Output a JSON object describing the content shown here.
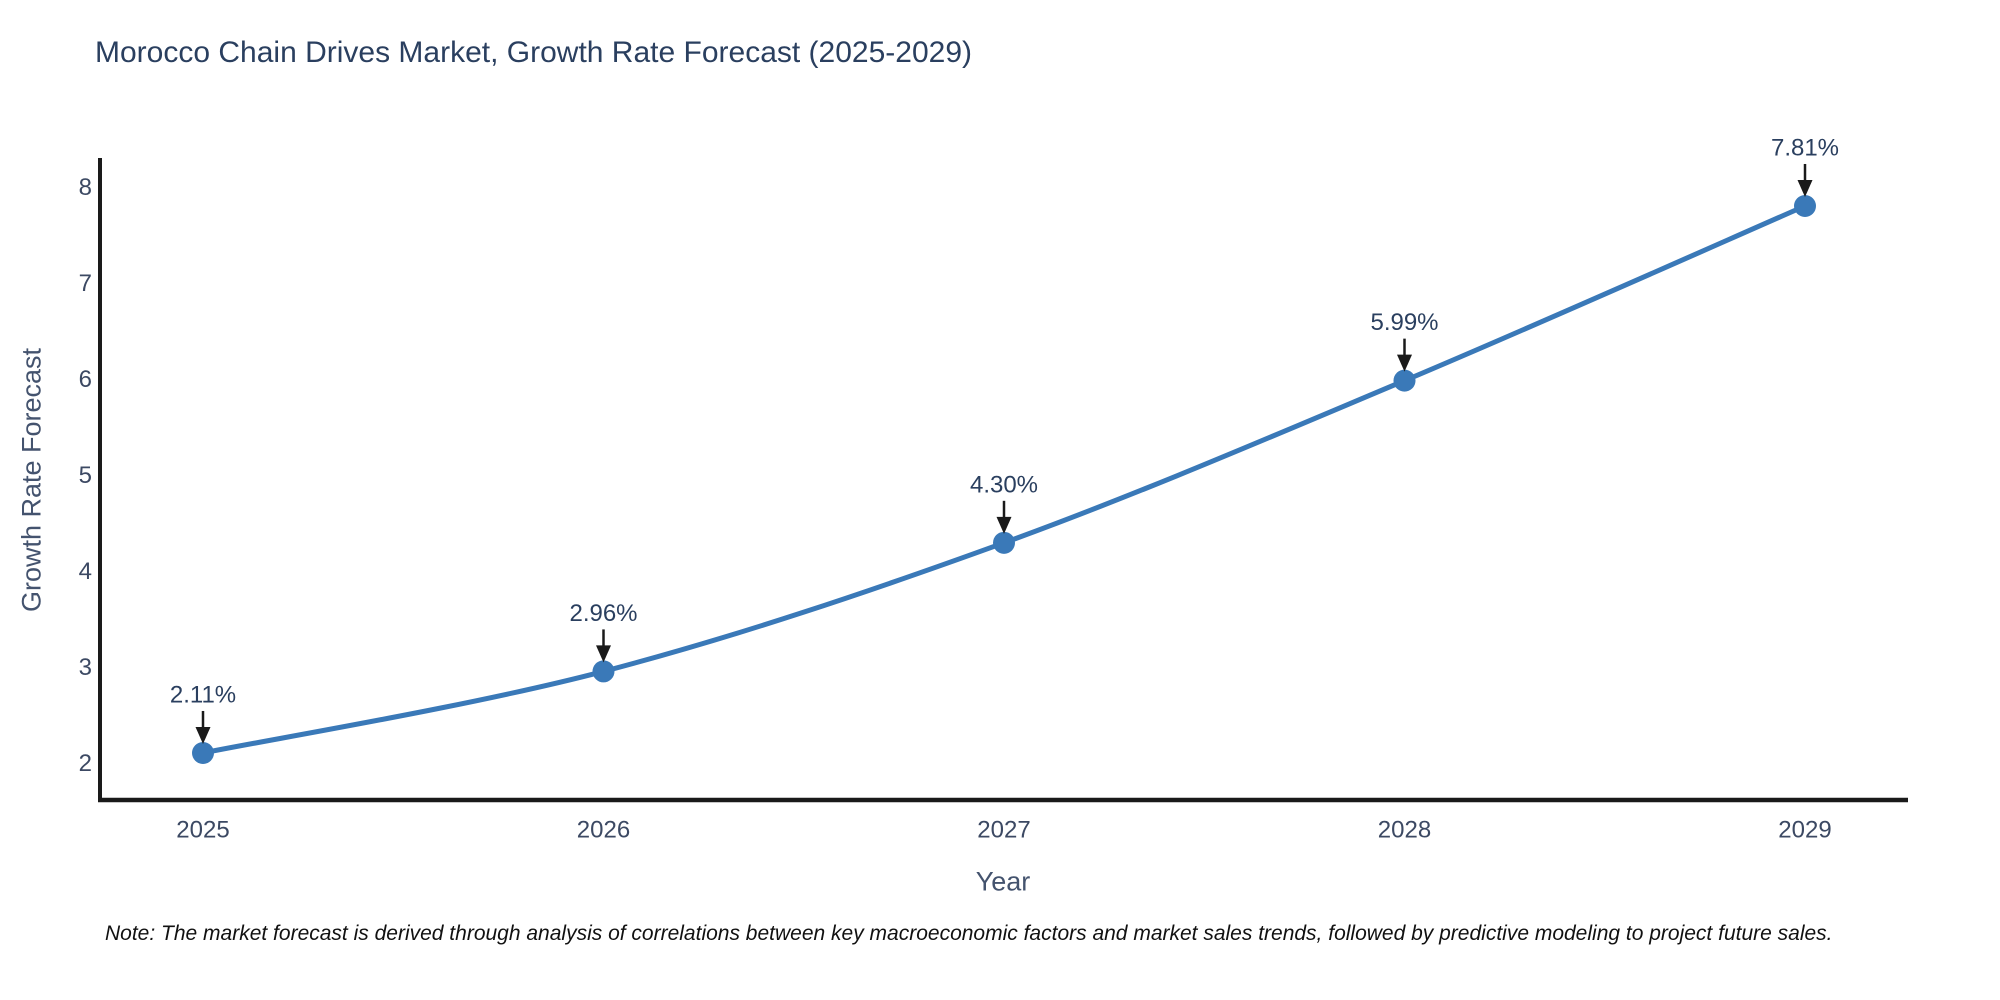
{
  "title": "Morocco Chain Drives Market, Growth Rate Forecast (2025-2029)",
  "note": "Note: The market forecast is derived through analysis of correlations between key macroeconomic factors and market sales trends, followed by predictive modeling to project future sales.",
  "chart_data": {
    "type": "line",
    "title": "Morocco Chain Drives Market, Growth Rate Forecast (2025-2029)",
    "xlabel": "Year",
    "ylabel": "Growth Rate Forecast",
    "categories": [
      "2025",
      "2026",
      "2027",
      "2028",
      "2029"
    ],
    "values": [
      2.11,
      2.96,
      4.3,
      5.99,
      7.81
    ],
    "point_labels": [
      "2.11%",
      "2.96%",
      "4.30%",
      "5.99%",
      "7.81%"
    ],
    "y_ticks": [
      2,
      3,
      4,
      5,
      6,
      7,
      8
    ],
    "ylim": [
      1.62,
      8.31
    ],
    "grid": false,
    "legend": "none",
    "line_shape": "spline",
    "annotation_style": "value label with down arrow to marker",
    "colors": {
      "line": "#3a79b8",
      "marker": "#3a79b8",
      "axis": "#1a1a1a",
      "tick_text": "#3c4963",
      "annotation_text": "#2a3f5f",
      "annotation_arrow": "#1a1a1a"
    }
  }
}
